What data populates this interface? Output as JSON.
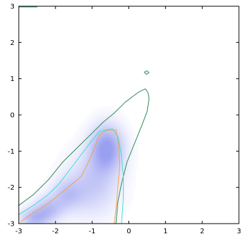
{
  "chart_data": {
    "type": "heatmap",
    "title": "",
    "xlabel": "",
    "ylabel": "",
    "xlim": [
      -3,
      3
    ],
    "ylim": [
      -3,
      3
    ],
    "x_ticks": [
      -3,
      -2,
      -1,
      0,
      1,
      2,
      3
    ],
    "y_ticks": [
      -3,
      -2,
      -1,
      0,
      1,
      2,
      3
    ],
    "x_tick_labels": [
      "-3",
      "-2",
      "-1",
      "0",
      "1",
      "2",
      "3"
    ],
    "y_tick_labels": [
      "-3",
      "-2",
      "-1",
      "0",
      "1",
      "2",
      "3"
    ],
    "grid": false,
    "colorscale": {
      "low": "#ffffff",
      "high": "#9aa0f0"
    },
    "density_blobs": [
      {
        "x": -0.6,
        "y": -0.9,
        "sx": 0.32,
        "sy": 0.45,
        "weight": 1.0
      },
      {
        "x": -1.0,
        "y": -1.9,
        "sx": 0.5,
        "sy": 0.6,
        "weight": 0.55
      },
      {
        "x": -1.7,
        "y": -2.2,
        "sx": 0.3,
        "sy": 0.3,
        "weight": 0.5
      },
      {
        "x": -2.2,
        "y": -2.6,
        "sx": 0.28,
        "sy": 0.25,
        "weight": 0.6
      },
      {
        "x": -2.6,
        "y": -2.85,
        "sx": 0.28,
        "sy": 0.2,
        "weight": 0.65
      }
    ],
    "contour_levels": [
      {
        "color": "#2e8b57",
        "points": [
          [
            -3,
            -2.5
          ],
          [
            -2.6,
            -2.2
          ],
          [
            -2.2,
            -1.8
          ],
          [
            -1.8,
            -1.3
          ],
          [
            -1.4,
            -0.9
          ],
          [
            -1.0,
            -0.5
          ],
          [
            -0.7,
            -0.2
          ],
          [
            -0.4,
            0.05
          ],
          [
            -0.1,
            0.35
          ],
          [
            0.25,
            0.62
          ],
          [
            0.45,
            0.72
          ],
          [
            0.52,
            0.62
          ],
          [
            0.55,
            0.45
          ],
          [
            0.5,
            0.1
          ],
          [
            0.35,
            -0.3
          ],
          [
            0.15,
            -0.8
          ],
          [
            -0.05,
            -1.3
          ],
          [
            -0.2,
            -1.9
          ],
          [
            -0.3,
            -2.4
          ],
          [
            -0.35,
            -3
          ]
        ]
      },
      {
        "color": "#40e0d0",
        "points": [
          [
            -3,
            -2.75
          ],
          [
            -2.6,
            -2.5
          ],
          [
            -2.2,
            -2.2
          ],
          [
            -1.9,
            -1.9
          ],
          [
            -1.6,
            -1.5
          ],
          [
            -1.3,
            -1.1
          ],
          [
            -1.0,
            -0.7
          ],
          [
            -0.8,
            -0.45
          ],
          [
            -0.45,
            -0.38
          ],
          [
            -0.3,
            -0.6
          ],
          [
            -0.2,
            -1.1
          ],
          [
            -0.15,
            -1.7
          ],
          [
            -0.15,
            -2.3
          ],
          [
            -0.2,
            -3
          ]
        ]
      },
      {
        "color": "#f0a050",
        "points": [
          [
            -2.95,
            -2.95
          ],
          [
            -2.6,
            -2.7
          ],
          [
            -2.2,
            -2.45
          ],
          [
            -1.9,
            -2.2
          ],
          [
            -1.6,
            -1.95
          ],
          [
            -1.3,
            -1.7
          ],
          [
            -1.1,
            -1.3
          ],
          [
            -0.95,
            -0.95
          ],
          [
            -0.8,
            -0.55
          ],
          [
            -0.6,
            -0.42
          ],
          [
            -0.35,
            -0.42
          ],
          [
            -0.28,
            -0.8
          ],
          [
            -0.25,
            -1.4
          ],
          [
            -0.3,
            -2.0
          ],
          [
            -0.35,
            -2.6
          ],
          [
            -0.4,
            -3
          ]
        ]
      }
    ],
    "small_contours": [
      {
        "color": "#2e8b57",
        "points": [
          [
            0.42,
            1.18
          ],
          [
            0.5,
            1.22
          ],
          [
            0.55,
            1.17
          ],
          [
            0.48,
            1.12
          ],
          [
            0.42,
            1.18
          ]
        ]
      },
      {
        "color": "#2e8b57",
        "points": [
          [
            -3,
            2.98
          ],
          [
            -2.5,
            2.98
          ]
        ]
      }
    ]
  }
}
